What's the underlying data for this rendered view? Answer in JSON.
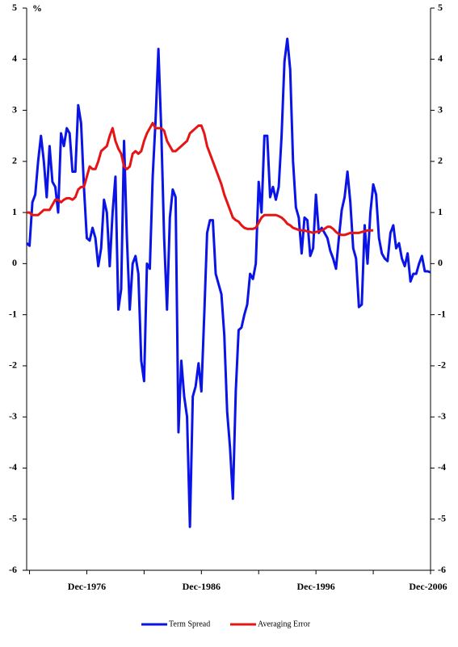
{
  "chart_data": {
    "type": "line",
    "y_label": "%",
    "categories": [
      null,
      null,
      null,
      null,
      null,
      null,
      null,
      null,
      null,
      null,
      null,
      null,
      null,
      null,
      null,
      null,
      null,
      null,
      null,
      null,
      null,
      "Dec-1976",
      null,
      null,
      null,
      null,
      null,
      null,
      null,
      null,
      null,
      null,
      null,
      null,
      null,
      null,
      null,
      null,
      null,
      null,
      null,
      null,
      null,
      null,
      null,
      null,
      null,
      null,
      null,
      null,
      null,
      null,
      null,
      null,
      null,
      null,
      null,
      null,
      null,
      null,
      null,
      "Dec-1986",
      null,
      null,
      null,
      null,
      null,
      null,
      null,
      null,
      null,
      null,
      null,
      null,
      null,
      null,
      null,
      null,
      null,
      null,
      null,
      null,
      null,
      null,
      null,
      null,
      null,
      null,
      null,
      null,
      null,
      null,
      null,
      null,
      null,
      null,
      null,
      null,
      null,
      null,
      null,
      "Dec-1996",
      null,
      null,
      null,
      null,
      null,
      null,
      null,
      null,
      null,
      null,
      null,
      null,
      null,
      null,
      null,
      null,
      null,
      null,
      null,
      null,
      null,
      null,
      null,
      null,
      null,
      null,
      null,
      null,
      null,
      null,
      null,
      null,
      null,
      null,
      null,
      null,
      null,
      null,
      null,
      "Dec-2006"
    ],
    "series": [
      {
        "name": "Term Spread",
        "color": "#0a14e6",
        "values": [
          0.4,
          0.35,
          1.2,
          1.35,
          2.0,
          2.5,
          2.0,
          1.3,
          2.3,
          1.6,
          1.5,
          1.0,
          2.55,
          2.3,
          2.65,
          2.55,
          1.8,
          1.8,
          3.1,
          2.75,
          1.5,
          0.5,
          0.45,
          0.7,
          0.5,
          -0.05,
          0.3,
          1.25,
          1.0,
          -0.05,
          1.0,
          1.7,
          -0.9,
          -0.5,
          2.4,
          0.5,
          -0.9,
          0.0,
          0.15,
          -0.2,
          -1.9,
          -2.3,
          0.0,
          -0.1,
          1.7,
          2.8,
          4.2,
          2.6,
          0.5,
          -0.9,
          0.9,
          1.45,
          1.3,
          -3.3,
          -1.9,
          -2.6,
          -3.0,
          -5.15,
          -2.6,
          -2.4,
          -1.95,
          -2.5,
          -1.0,
          0.6,
          0.85,
          0.85,
          -0.2,
          -0.4,
          -0.6,
          -1.4,
          -2.9,
          -3.6,
          -4.6,
          -2.5,
          -1.3,
          -1.25,
          -1.0,
          -0.8,
          -0.2,
          -0.3,
          0.0,
          1.6,
          1.0,
          2.5,
          2.5,
          1.3,
          1.5,
          1.25,
          1.5,
          2.5,
          3.95,
          4.4,
          3.8,
          2.0,
          1.1,
          0.9,
          0.2,
          0.9,
          0.85,
          0.15,
          0.3,
          1.35,
          0.6,
          0.7,
          0.6,
          0.5,
          0.25,
          0.1,
          -0.1,
          0.5,
          1.05,
          1.3,
          1.8,
          1.2,
          0.3,
          0.1,
          -0.85,
          -0.8,
          0.75,
          0.0,
          1.0,
          1.55,
          1.35,
          0.5,
          0.2,
          0.1,
          0.05,
          0.6,
          0.75,
          0.3,
          0.4,
          0.1,
          -0.05,
          0.2,
          -0.35,
          -0.2,
          -0.2,
          0.0,
          0.15,
          -0.15,
          -0.15,
          -0.17
        ]
      },
      {
        "name": "Averaging Error",
        "color": "#e61414",
        "values": [
          1.0,
          1.0,
          0.95,
          0.95,
          0.95,
          1.0,
          1.05,
          1.05,
          1.05,
          1.15,
          1.25,
          1.25,
          1.2,
          1.25,
          1.28,
          1.28,
          1.25,
          1.3,
          1.45,
          1.5,
          1.5,
          1.7,
          1.9,
          1.85,
          1.85,
          2.0,
          2.2,
          2.25,
          2.3,
          2.5,
          2.65,
          2.4,
          2.25,
          2.15,
          1.9,
          1.85,
          1.9,
          2.15,
          2.2,
          2.15,
          2.2,
          2.4,
          2.55,
          2.65,
          2.75,
          2.65,
          2.65,
          2.65,
          2.6,
          2.4,
          2.3,
          2.2,
          2.2,
          2.25,
          2.3,
          2.35,
          2.4,
          2.55,
          2.6,
          2.65,
          2.7,
          2.7,
          2.55,
          2.3,
          2.15,
          2.0,
          1.85,
          1.7,
          1.55,
          1.35,
          1.2,
          1.05,
          0.9,
          0.85,
          0.82,
          0.75,
          0.7,
          0.68,
          0.68,
          0.68,
          0.7,
          0.8,
          0.9,
          0.95,
          0.95,
          0.95,
          0.95,
          0.95,
          0.93,
          0.9,
          0.85,
          0.78,
          0.75,
          0.7,
          0.68,
          0.66,
          0.65,
          0.65,
          0.63,
          0.62,
          0.6,
          0.62,
          0.63,
          0.65,
          0.68,
          0.72,
          0.72,
          0.68,
          0.62,
          0.58,
          0.56,
          0.56,
          0.58,
          0.6,
          0.6,
          0.6,
          0.6,
          0.62,
          0.63,
          0.65,
          0.65,
          0.65,
          null,
          null,
          null,
          null,
          null,
          null,
          null,
          null,
          null,
          null,
          null,
          null,
          null,
          null,
          null,
          null,
          null,
          null,
          null,
          null
        ]
      }
    ],
    "ylim": [
      -6,
      5
    ],
    "yticks": [
      -6,
      -5,
      -4,
      -3,
      -2,
      -1,
      0,
      1,
      2,
      3,
      4,
      5
    ],
    "y2lim": [
      -6,
      5
    ],
    "y2ticks": [
      -6,
      -5,
      -4,
      -3,
      -2,
      -1,
      0,
      1,
      2,
      3,
      4,
      5
    ],
    "legend": "bottom"
  }
}
